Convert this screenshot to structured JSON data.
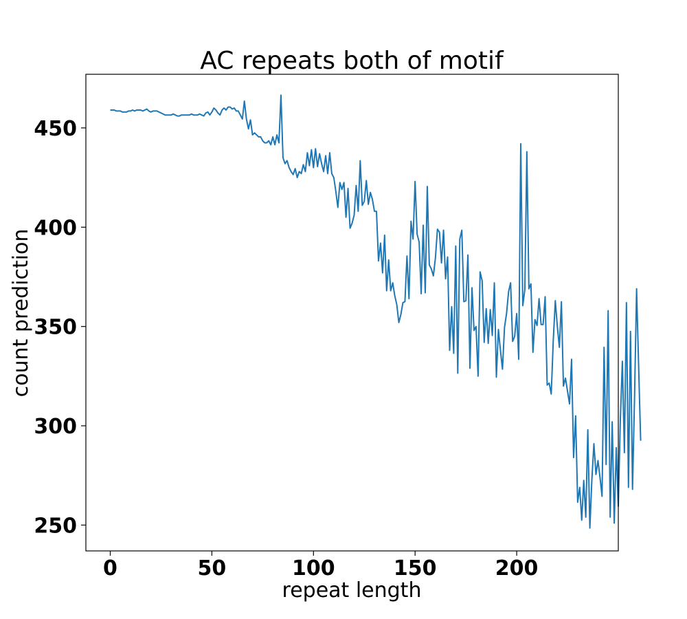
{
  "chart_data": {
    "type": "line",
    "title": "AC repeats both of motif",
    "xlabel": "repeat length",
    "ylabel": "count prediction",
    "xlim": [
      -12,
      250
    ],
    "ylim": [
      237,
      477
    ],
    "xticks": [
      0,
      50,
      100,
      150,
      200
    ],
    "yticks": [
      250,
      300,
      350,
      400,
      450
    ],
    "grid": false,
    "legend": "none",
    "colors": {
      "series": "#1f77b4"
    },
    "series": [
      {
        "values": [
          459,
          459,
          459,
          458.5,
          458.5,
          458.5,
          458,
          458,
          458,
          458.5,
          458.5,
          459,
          458.5,
          459,
          459,
          459,
          458.5,
          459,
          459.5,
          458.5,
          458,
          458.5,
          458.5,
          458.5,
          458,
          457.5,
          457,
          456.5,
          456.5,
          456.5,
          456.5,
          457,
          456.5,
          456,
          456,
          456.5,
          456.5,
          456.5,
          456.5,
          456.5,
          457,
          456.5,
          456.5,
          456.5,
          457,
          456.5,
          456,
          457.5,
          458,
          456.5,
          458,
          460,
          459,
          457.5,
          456.5,
          459,
          460,
          459,
          460.5,
          460.5,
          459.5,
          460,
          458.5,
          458.5,
          456.5,
          454.5,
          463.5,
          454.5,
          449.5,
          454,
          446.5,
          447.5,
          446.5,
          445.5,
          445.5,
          443.5,
          442.5,
          442.5,
          443.5,
          441.5,
          445.5,
          441.5,
          446.5,
          442.5,
          466.5,
          435,
          432,
          433.5,
          430,
          428,
          426.5,
          429.5,
          425,
          428,
          427,
          431.5,
          428,
          437.5,
          431,
          439,
          430,
          439.5,
          430.5,
          437,
          432,
          428,
          436,
          427,
          437.5,
          427,
          425,
          418,
          410,
          422.5,
          419,
          422.5,
          405,
          419.5,
          399.5,
          402,
          406,
          421,
          408,
          433.5,
          411,
          413,
          423.5,
          411.5,
          417.5,
          414,
          408,
          408,
          383,
          392,
          377,
          396,
          368,
          383.5,
          368,
          372,
          365.5,
          361,
          352,
          356,
          362,
          362.5,
          385.5,
          364,
          403,
          394,
          423,
          396.5,
          392.5,
          366.5,
          401,
          367,
          420.5,
          381,
          379,
          375.5,
          384.5,
          399,
          397.5,
          382,
          398.5,
          374,
          385,
          338,
          360,
          336.5,
          390.5,
          326.5,
          394,
          398.5,
          362.5,
          363,
          386,
          329,
          369.5,
          348,
          350,
          325,
          377.5,
          373,
          342,
          359,
          341.5,
          358.5,
          345.5,
          372,
          324.5,
          348.5,
          338,
          328.5,
          349.5,
          356.5,
          367.5,
          372,
          342.5,
          345,
          356.5,
          333.5,
          442,
          360.5,
          368.5,
          438,
          369,
          371.5,
          337,
          353.5,
          350.5,
          364,
          351,
          351,
          365,
          320.5,
          321.5,
          316,
          343,
          363,
          350,
          339.5,
          362.5,
          320,
          324,
          317.5,
          311,
          333.5,
          284,
          305,
          261.5,
          269,
          252.5,
          272.5,
          254,
          298,
          248.5,
          273,
          291,
          275.5,
          282.5,
          274,
          264.5,
          339.5,
          280.5,
          358,
          254,
          302,
          251,
          289,
          259.5,
          303,
          332.5,
          286.5,
          362,
          269,
          347.5,
          268,
          314.5,
          369,
          330,
          292.5
        ]
      }
    ]
  }
}
